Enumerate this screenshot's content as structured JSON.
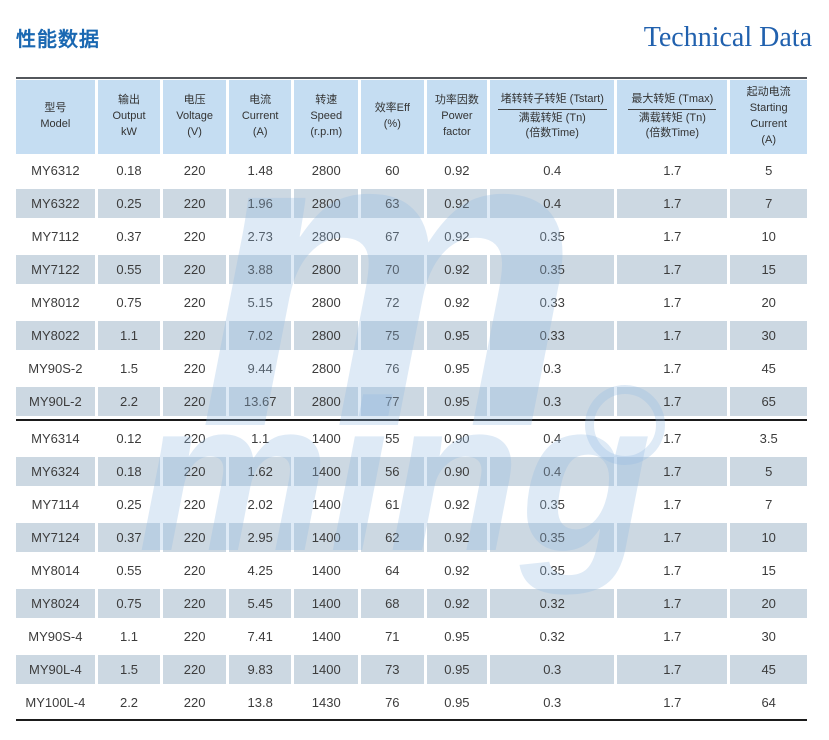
{
  "page": {
    "title_zh": "性能数据",
    "title_en": "Technical Data"
  },
  "watermark": {
    "letter": "m",
    "word": "ming"
  },
  "colors": {
    "title_zh": "#1a68b2",
    "title_en": "#2161ae",
    "header_bg": "#c5ddf2",
    "shaded_row_bg": "#ccd8e2",
    "top_border": "#53575c",
    "black_line": "#1b1b1b",
    "watermark": "#dce8f6"
  },
  "table": {
    "header": {
      "cols": [
        {
          "text": "型号\nModel"
        },
        {
          "text": "输出\nOutput\nkW"
        },
        {
          "text": "电压\nVoltage\n(V)"
        },
        {
          "text": "电流\nCurrent\n(A)"
        },
        {
          "text": "转速\nSpeed\n(r.p.m)"
        },
        {
          "text": "效率Eff\n(%)"
        },
        {
          "text": "功率因数\nPower\nfactor"
        },
        {
          "fraction": {
            "num": "堵转转子转矩 (Tstart)",
            "den": "满载转矩 (Tn)",
            "note": "(倍数Time)"
          }
        },
        {
          "fraction": {
            "num": "最大转矩 (Tmax)",
            "den": "满载转矩 (Tn)",
            "note": "(倍数Time)"
          }
        },
        {
          "text": "起动电流\nStarting\nCurrent\n(A)"
        }
      ]
    },
    "groups": [
      {
        "rows": [
          [
            "MY6312",
            "0.18",
            "220",
            "1.48",
            "2800",
            "60",
            "0.92",
            "0.4",
            "1.7",
            "5"
          ],
          [
            "MY6322",
            "0.25",
            "220",
            "1.96",
            "2800",
            "63",
            "0.92",
            "0.4",
            "1.7",
            "7"
          ],
          [
            "MY7112",
            "0.37",
            "220",
            "2.73",
            "2800",
            "67",
            "0.92",
            "0.35",
            "1.7",
            "10"
          ],
          [
            "MY7122",
            "0.55",
            "220",
            "3.88",
            "2800",
            "70",
            "0.92",
            "0.35",
            "1.7",
            "15"
          ],
          [
            "MY8012",
            "0.75",
            "220",
            "5.15",
            "2800",
            "72",
            "0.92",
            "0.33",
            "1.7",
            "20"
          ],
          [
            "MY8022",
            "1.1",
            "220",
            "7.02",
            "2800",
            "75",
            "0.95",
            "0.33",
            "1.7",
            "30"
          ],
          [
            "MY90S-2",
            "1.5",
            "220",
            "9.44",
            "2800",
            "76",
            "0.95",
            "0.3",
            "1.7",
            "45"
          ],
          [
            "MY90L-2",
            "2.2",
            "220",
            "13.67",
            "2800",
            "77",
            "0.95",
            "0.3",
            "1.7",
            "65"
          ]
        ]
      },
      {
        "rows": [
          [
            "MY6314",
            "0.12",
            "220",
            "1.1",
            "1400",
            "55",
            "0.90",
            "0.4",
            "1.7",
            "3.5"
          ],
          [
            "MY6324",
            "0.18",
            "220",
            "1.62",
            "1400",
            "56",
            "0.90",
            "0.4",
            "1.7",
            "5"
          ],
          [
            "MY7114",
            "0.25",
            "220",
            "2.02",
            "1400",
            "61",
            "0.92",
            "0.35",
            "1.7",
            "7"
          ],
          [
            "MY7124",
            "0.37",
            "220",
            "2.95",
            "1400",
            "62",
            "0.92",
            "0.35",
            "1.7",
            "10"
          ],
          [
            "MY8014",
            "0.55",
            "220",
            "4.25",
            "1400",
            "64",
            "0.92",
            "0.35",
            "1.7",
            "15"
          ],
          [
            "MY8024",
            "0.75",
            "220",
            "5.45",
            "1400",
            "68",
            "0.92",
            "0.32",
            "1.7",
            "20"
          ],
          [
            "MY90S-4",
            "1.1",
            "220",
            "7.41",
            "1400",
            "71",
            "0.95",
            "0.32",
            "1.7",
            "30"
          ],
          [
            "MY90L-4",
            "1.5",
            "220",
            "9.83",
            "1400",
            "73",
            "0.95",
            "0.3",
            "1.7",
            "45"
          ],
          [
            "MY100L-4",
            "2.2",
            "220",
            "13.8",
            "1430",
            "76",
            "0.95",
            "0.3",
            "1.7",
            "64"
          ]
        ]
      }
    ]
  }
}
